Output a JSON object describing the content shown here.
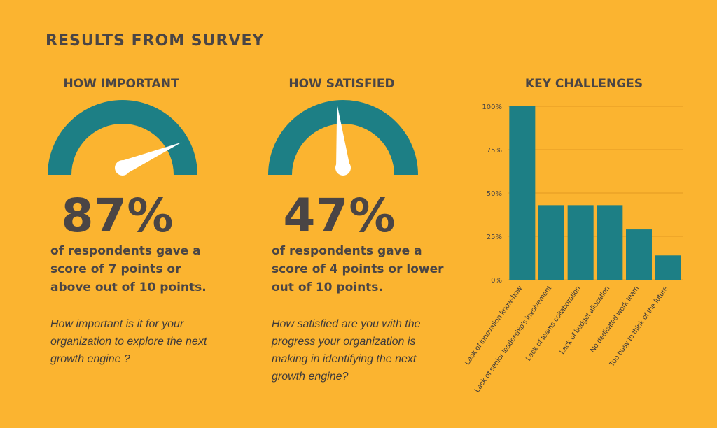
{
  "title": "RESULTS FROM SURVEY",
  "colors": {
    "background": "#FBB430",
    "teal": "#1D7F85",
    "text": "#4A4545",
    "needle": "#FFFFFF"
  },
  "important": {
    "heading": "HOW IMPORTANT",
    "percent": "87%",
    "gauge_value": 0.87,
    "description": "of respondents gave a score of 7 points or above out of 10 points.",
    "question": "How important is it for your organization to explore the next growth engine ?"
  },
  "satisfied": {
    "heading": "HOW SATISFIED",
    "percent": "47%",
    "gauge_value": 0.47,
    "description": "of respondents gave a score of 4 points or lower out of 10 points.",
    "question": "How satisfied are you with the progress your organization is making in identifying the next growth engine?"
  },
  "chart_data": {
    "type": "bar",
    "title": "KEY CHALLENGES",
    "categories": [
      "Lack of innovation know-how",
      "Lack of senior leadership's involvement",
      "Lack of teams collaboration",
      "Lack of budget allocation",
      "No dedicated work team",
      "Too busy to think of the future"
    ],
    "values": [
      100,
      43,
      43,
      43,
      29,
      14
    ],
    "ylim": [
      0,
      100
    ],
    "yticks": [
      0,
      25,
      50,
      75,
      100
    ],
    "ytick_labels": [
      "0%",
      "25%",
      "50%",
      "75%",
      "100%"
    ],
    "xlabel": "",
    "ylabel": "",
    "grid": true
  }
}
